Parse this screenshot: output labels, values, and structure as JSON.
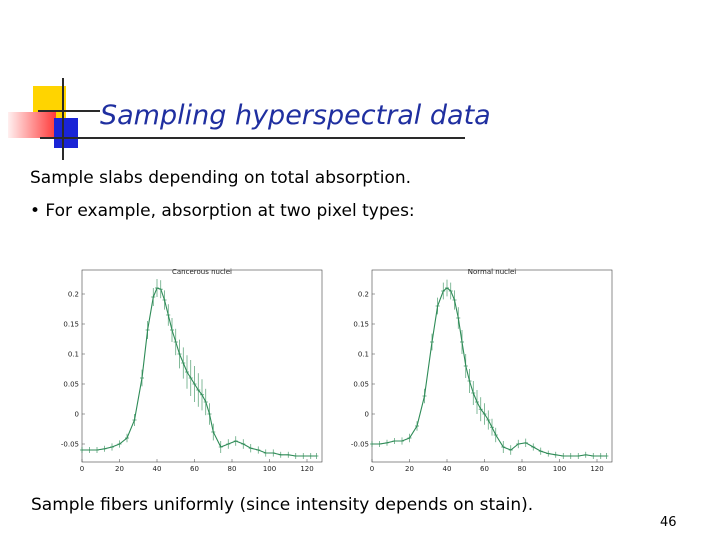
{
  "slide": {
    "title": "Sampling hyperspectral data",
    "line1": "Sample slabs depending on total absorption.",
    "line2": "• For example, absorption at two pixel types:",
    "line3": "Sample fibers uniformly (since intensity depends on stain).",
    "page_number": "46",
    "colors": {
      "title": "#1f2fa0",
      "series": "#2e8b57",
      "deco_yellow": "#ffd400",
      "deco_red": "#ff3030",
      "deco_blue": "#1a24d6"
    }
  },
  "chart_data": [
    {
      "type": "line",
      "title": "Cancerous nuclei",
      "xlim": [
        0,
        128
      ],
      "ylim": [
        -0.08,
        0.24
      ],
      "xticks": [
        0,
        20,
        40,
        60,
        80,
        100,
        120
      ],
      "yticks": [
        -0.05,
        0,
        0.05,
        0.1,
        0.15,
        0.2
      ],
      "ytick_labels": [
        "-0.05",
        "0",
        "0.05",
        "0.1",
        "0.15",
        "0.2"
      ],
      "error_bars": true,
      "series": [
        {
          "x": [
            0,
            4,
            8,
            12,
            16,
            20,
            24,
            28,
            32,
            35,
            38,
            40,
            42,
            44,
            46,
            48,
            50,
            52,
            54,
            56,
            58,
            60,
            62,
            64,
            66,
            68,
            70,
            74,
            78,
            82,
            86,
            90,
            94,
            98,
            102,
            106,
            110,
            114,
            118,
            122,
            125
          ],
          "y": [
            -0.06,
            -0.06,
            -0.06,
            -0.058,
            -0.055,
            -0.05,
            -0.04,
            -0.01,
            0.06,
            0.14,
            0.195,
            0.21,
            0.208,
            0.19,
            0.165,
            0.14,
            0.12,
            0.1,
            0.085,
            0.07,
            0.06,
            0.05,
            0.04,
            0.032,
            0.02,
            0.0,
            -0.03,
            -0.055,
            -0.05,
            -0.045,
            -0.05,
            -0.057,
            -0.06,
            -0.065,
            -0.065,
            -0.068,
            -0.068,
            -0.07,
            -0.07,
            -0.07,
            -0.07
          ],
          "err": [
            0.005,
            0.005,
            0.005,
            0.005,
            0.006,
            0.006,
            0.007,
            0.01,
            0.014,
            0.015,
            0.015,
            0.015,
            0.015,
            0.016,
            0.018,
            0.02,
            0.022,
            0.024,
            0.026,
            0.028,
            0.03,
            0.03,
            0.028,
            0.026,
            0.022,
            0.018,
            0.014,
            0.01,
            0.008,
            0.008,
            0.008,
            0.007,
            0.006,
            0.006,
            0.006,
            0.005,
            0.005,
            0.005,
            0.005,
            0.005,
            0.005
          ]
        }
      ]
    },
    {
      "type": "line",
      "title": "Normal nuclei",
      "xlim": [
        0,
        128
      ],
      "ylim": [
        -0.08,
        0.24
      ],
      "xticks": [
        0,
        20,
        40,
        60,
        80,
        100,
        120
      ],
      "yticks": [
        -0.05,
        0,
        0.05,
        0.1,
        0.15,
        0.2
      ],
      "ytick_labels": [
        "-0.05",
        "0",
        "0.05",
        "0.1",
        "0.15",
        "0.2"
      ],
      "error_bars": true,
      "series": [
        {
          "x": [
            0,
            4,
            8,
            12,
            16,
            20,
            24,
            28,
            32,
            35,
            38,
            40,
            42,
            44,
            46,
            48,
            50,
            52,
            54,
            56,
            58,
            60,
            62,
            64,
            66,
            70,
            74,
            78,
            82,
            86,
            90,
            94,
            98,
            102,
            106,
            110,
            114,
            118,
            122,
            125
          ],
          "y": [
            -0.05,
            -0.05,
            -0.048,
            -0.045,
            -0.045,
            -0.04,
            -0.02,
            0.03,
            0.12,
            0.18,
            0.205,
            0.21,
            0.205,
            0.19,
            0.16,
            0.12,
            0.08,
            0.055,
            0.035,
            0.02,
            0.008,
            0.0,
            -0.01,
            -0.022,
            -0.035,
            -0.055,
            -0.06,
            -0.05,
            -0.048,
            -0.055,
            -0.062,
            -0.066,
            -0.068,
            -0.07,
            -0.07,
            -0.07,
            -0.068,
            -0.07,
            -0.07,
            -0.07
          ],
          "err": [
            0.005,
            0.005,
            0.005,
            0.005,
            0.006,
            0.007,
            0.008,
            0.012,
            0.014,
            0.014,
            0.014,
            0.014,
            0.014,
            0.016,
            0.018,
            0.02,
            0.02,
            0.02,
            0.02,
            0.02,
            0.02,
            0.018,
            0.016,
            0.014,
            0.012,
            0.01,
            0.008,
            0.007,
            0.007,
            0.006,
            0.006,
            0.005,
            0.005,
            0.005,
            0.005,
            0.005,
            0.005,
            0.005,
            0.005,
            0.005
          ]
        }
      ]
    }
  ]
}
